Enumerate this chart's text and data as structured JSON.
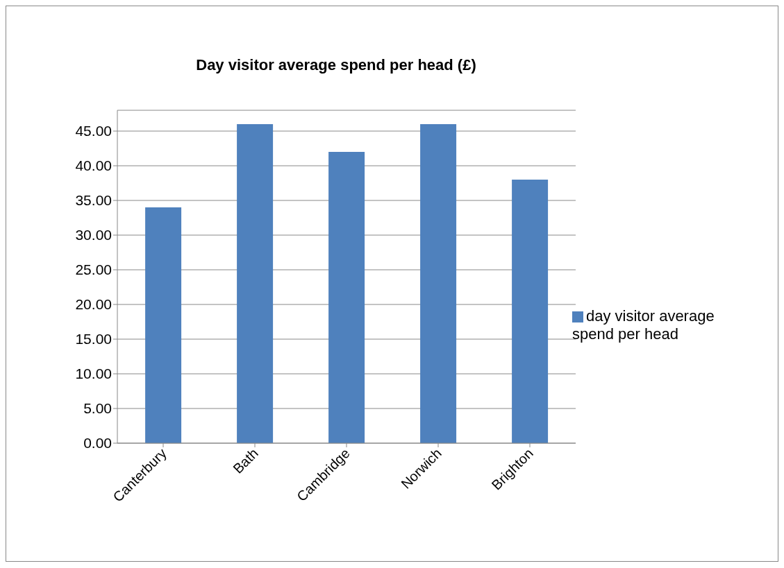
{
  "chart_data": {
    "type": "bar",
    "title": "Day visitor average spend per head (£)",
    "categories": [
      "Canterbury",
      "Bath",
      "Cambridge",
      "Norwich",
      "Brighton"
    ],
    "series": [
      {
        "name": "day visitor average spend per head",
        "color": "#4f81bd",
        "values": [
          34,
          46,
          42,
          46,
          38
        ]
      }
    ],
    "ylim": [
      0,
      48
    ],
    "yticks": [
      {
        "value": 0,
        "label": "0.00"
      },
      {
        "value": 5,
        "label": "5.00"
      },
      {
        "value": 10,
        "label": "10.00"
      },
      {
        "value": 15,
        "label": "15.00"
      },
      {
        "value": 20,
        "label": "20.00"
      },
      {
        "value": 25,
        "label": "25.00"
      },
      {
        "value": 30,
        "label": "30.00"
      },
      {
        "value": 35,
        "label": "35.00"
      },
      {
        "value": 40,
        "label": "40.00"
      },
      {
        "value": 45,
        "label": "45.00"
      }
    ],
    "grid": "y",
    "legend": "right"
  }
}
